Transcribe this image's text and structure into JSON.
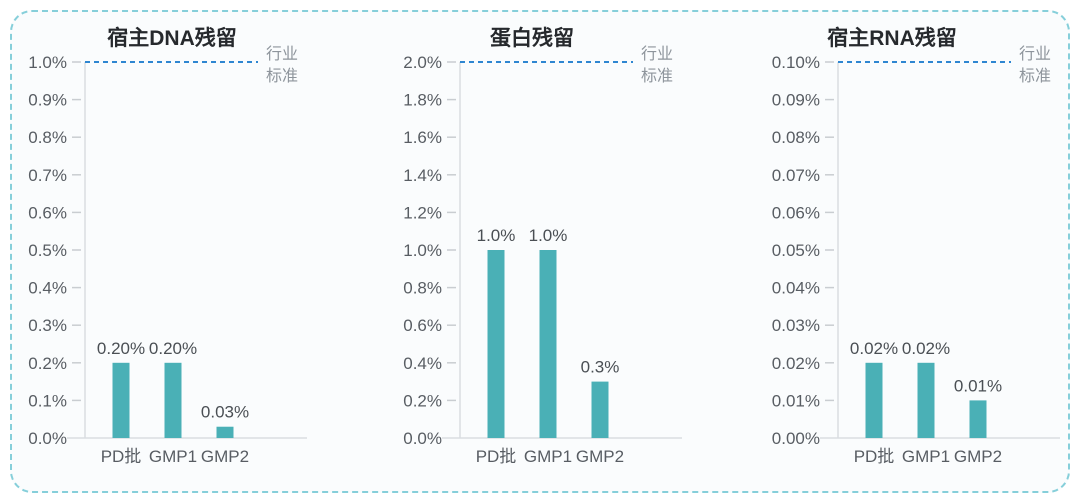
{
  "frame": {
    "border_color": "#86CFDA",
    "background": "#FAFCFD"
  },
  "colors": {
    "bar": "#4AB0B6",
    "standard_line": "#2E86D1",
    "title": "#26292D",
    "tick_label": "#585D63",
    "value_label": "#4A4F54",
    "category_label": "#585D63",
    "axis_line": "#D9DDE1",
    "tick_mark": "#C9CDD1",
    "standard_label": "#8E959C"
  },
  "chart_data": [
    {
      "type": "bar",
      "title": "宿主DNA残留",
      "categories": [
        "PD批",
        "GMP1",
        "GMP2"
      ],
      "values": [
        0.2,
        0.2,
        0.03
      ],
      "value_labels": [
        "0.20%",
        "0.20%",
        "0.03%"
      ],
      "ylim": [
        0,
        1.0
      ],
      "ytick_step": 0.1,
      "ytick_labels": [
        "0.0%",
        "0.1%",
        "0.2%",
        "0.3%",
        "0.4%",
        "0.5%",
        "0.6%",
        "0.7%",
        "0.8%",
        "0.9%",
        "1.0%"
      ],
      "grid": false,
      "standard_line": {
        "value": 1.0,
        "label_lines": [
          "行业",
          "标准"
        ]
      }
    },
    {
      "type": "bar",
      "title": "蛋白残留",
      "categories": [
        "PD批",
        "GMP1",
        "GMP2"
      ],
      "values": [
        1.0,
        1.0,
        0.3
      ],
      "value_labels": [
        "1.0%",
        "1.0%",
        "0.3%"
      ],
      "ylim": [
        0,
        2.0
      ],
      "ytick_step": 0.2,
      "ytick_labels": [
        "0.0%",
        "0.2%",
        "0.4%",
        "0.6%",
        "0.8%",
        "1.0%",
        "1.2%",
        "1.4%",
        "1.6%",
        "1.8%",
        "2.0%"
      ],
      "grid": false,
      "standard_line": {
        "value": 2.0,
        "label_lines": [
          "行业",
          "标准"
        ]
      }
    },
    {
      "type": "bar",
      "title": "宿主RNA残留",
      "categories": [
        "PD批",
        "GMP1",
        "GMP2"
      ],
      "values": [
        0.02,
        0.02,
        0.01
      ],
      "value_labels": [
        "0.02%",
        "0.02%",
        "0.01%"
      ],
      "ylim": [
        0,
        0.1
      ],
      "ytick_step": 0.01,
      "ytick_labels": [
        "0.00%",
        "0.01%",
        "0.02%",
        "0.03%",
        "0.04%",
        "0.05%",
        "0.06%",
        "0.07%",
        "0.08%",
        "0.09%",
        "0.10%"
      ],
      "grid": false,
      "standard_line": {
        "value": 0.1,
        "label_lines": [
          "行业",
          "标准"
        ]
      }
    }
  ]
}
